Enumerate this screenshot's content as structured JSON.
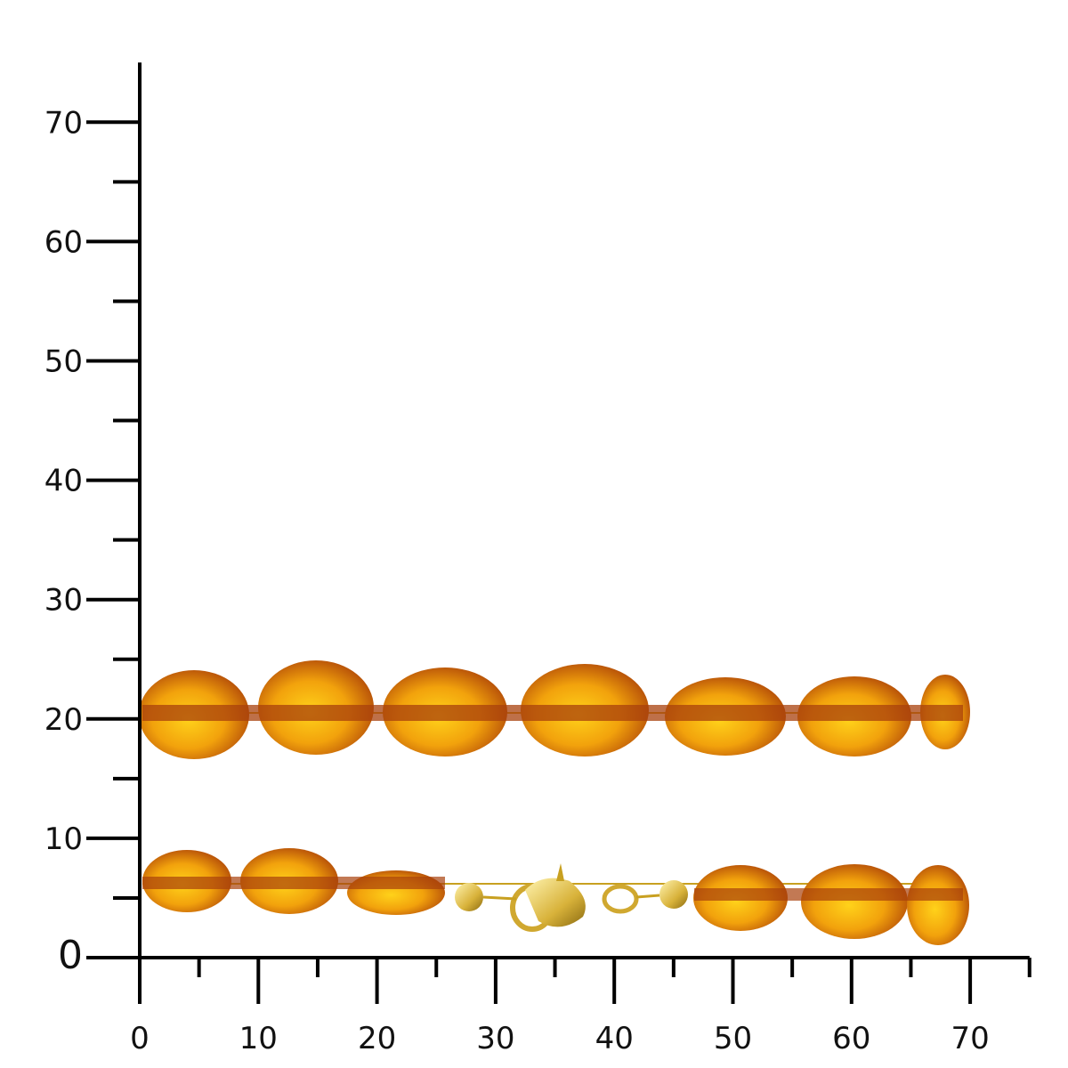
{
  "x_axis": {
    "lim": [
      0,
      75
    ],
    "ticks": [
      0,
      10,
      20,
      30,
      40,
      50,
      60,
      70
    ],
    "minor_ticks": [
      5,
      15,
      25,
      35,
      45,
      55,
      65,
      75
    ]
  },
  "y_axis": {
    "lim": [
      0,
      75
    ],
    "ticks": [
      0,
      10,
      20,
      30,
      40,
      50,
      60,
      70
    ],
    "minor_ticks": [
      5,
      15,
      25,
      35,
      45,
      55,
      65
    ]
  }
}
